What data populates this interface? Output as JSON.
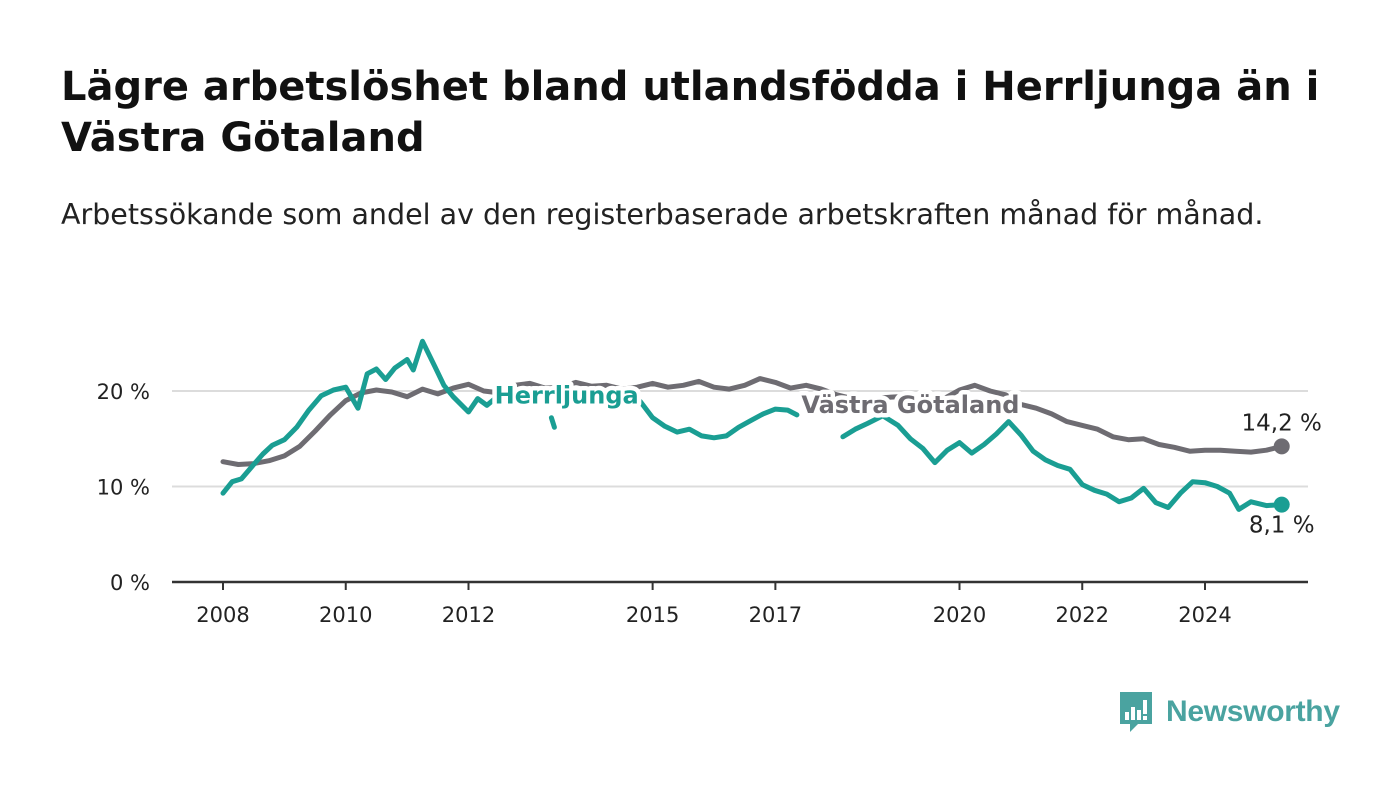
{
  "title": "Lägre arbetslöshet bland utlandsfödda i Herrljunga än i Västra Götaland",
  "subtitle": "Arbetssökande som andel av den registerbaserade arbetskraften månad för månad.",
  "brand": {
    "name": "Newsworthy",
    "color": "#4aa3a0"
  },
  "chart_data": {
    "type": "line",
    "title": "",
    "xlabel": "",
    "ylabel": "",
    "ylim": [
      0,
      25
    ],
    "grid": true,
    "y_ticks": [
      {
        "value": 0,
        "label": "0 %"
      },
      {
        "value": 10,
        "label": "10 %"
      },
      {
        "value": 20,
        "label": "20 %"
      }
    ],
    "x_ticks": [
      {
        "value": 2008,
        "label": "2008"
      },
      {
        "value": 2010,
        "label": "2010"
      },
      {
        "value": 2012,
        "label": "2012"
      },
      {
        "value": 2015,
        "label": "2015"
      },
      {
        "value": 2017,
        "label": "2017"
      },
      {
        "value": 2020,
        "label": "2020"
      },
      {
        "value": 2022,
        "label": "2022"
      },
      {
        "value": 2024,
        "label": "2024"
      }
    ],
    "xlim": [
      2008,
      2026.5
    ],
    "series": [
      {
        "name": "Västra Götaland",
        "color": "#6e6c72",
        "end_label": "14,2 %",
        "points": [
          [
            2008.0,
            12.6
          ],
          [
            2008.25,
            12.3
          ],
          [
            2008.5,
            12.4
          ],
          [
            2008.75,
            12.7
          ],
          [
            2009.0,
            13.2
          ],
          [
            2009.25,
            14.2
          ],
          [
            2009.5,
            15.8
          ],
          [
            2009.75,
            17.5
          ],
          [
            2010.0,
            19.0
          ],
          [
            2010.25,
            19.8
          ],
          [
            2010.5,
            20.1
          ],
          [
            2010.75,
            19.9
          ],
          [
            2011.0,
            19.4
          ],
          [
            2011.25,
            20.2
          ],
          [
            2011.5,
            19.7
          ],
          [
            2011.75,
            20.3
          ],
          [
            2012.0,
            20.7
          ],
          [
            2012.25,
            20.0
          ],
          [
            2012.5,
            19.8
          ],
          [
            2012.75,
            20.6
          ],
          [
            2013.0,
            20.8
          ],
          [
            2013.25,
            20.3
          ],
          [
            2013.5,
            20.4
          ],
          [
            2013.75,
            20.9
          ],
          [
            2014.0,
            20.5
          ],
          [
            2014.25,
            20.6
          ],
          [
            2014.5,
            20.2
          ],
          [
            2014.75,
            20.4
          ],
          [
            2015.0,
            20.8
          ],
          [
            2015.25,
            20.4
          ],
          [
            2015.5,
            20.6
          ],
          [
            2015.75,
            21.0
          ],
          [
            2016.0,
            20.4
          ],
          [
            2016.25,
            20.2
          ],
          [
            2016.5,
            20.6
          ],
          [
            2016.75,
            21.3
          ],
          [
            2017.0,
            20.9
          ],
          [
            2017.25,
            20.3
          ],
          [
            2017.5,
            20.6
          ],
          [
            2017.75,
            20.2
          ],
          [
            2018.0,
            19.6
          ],
          [
            2018.25,
            19.2
          ],
          [
            2018.5,
            18.8
          ],
          [
            2018.75,
            19.3
          ],
          [
            2019.0,
            19.4
          ],
          [
            2019.25,
            18.8
          ],
          [
            2019.5,
            18.7
          ],
          [
            2019.75,
            19.2
          ],
          [
            2020.0,
            20.1
          ],
          [
            2020.25,
            20.6
          ],
          [
            2020.5,
            20.0
          ],
          [
            2020.75,
            19.6
          ],
          [
            2021.0,
            18.6
          ],
          [
            2021.25,
            18.2
          ],
          [
            2021.5,
            17.6
          ],
          [
            2021.75,
            16.8
          ],
          [
            2022.0,
            16.4
          ],
          [
            2022.25,
            16.0
          ],
          [
            2022.5,
            15.2
          ],
          [
            2022.75,
            14.9
          ],
          [
            2023.0,
            15.0
          ],
          [
            2023.25,
            14.4
          ],
          [
            2023.5,
            14.1
          ],
          [
            2023.75,
            13.7
          ],
          [
            2024.0,
            13.8
          ],
          [
            2024.25,
            13.8
          ],
          [
            2024.5,
            13.7
          ],
          [
            2024.75,
            13.6
          ],
          [
            2025.0,
            13.8
          ],
          [
            2025.25,
            14.2
          ]
        ]
      },
      {
        "name": "Herrljunga",
        "color": "#1a9e93",
        "end_label": "8,1 %",
        "points": [
          [
            2008.0,
            9.3
          ],
          [
            2008.15,
            10.5
          ],
          [
            2008.3,
            10.8
          ],
          [
            2008.5,
            12.3
          ],
          [
            2008.65,
            13.4
          ],
          [
            2008.8,
            14.3
          ],
          [
            2009.0,
            14.9
          ],
          [
            2009.2,
            16.2
          ],
          [
            2009.4,
            18.0
          ],
          [
            2009.6,
            19.5
          ],
          [
            2009.8,
            20.1
          ],
          [
            2010.0,
            20.4
          ],
          [
            2010.2,
            18.2
          ],
          [
            2010.35,
            21.8
          ],
          [
            2010.5,
            22.3
          ],
          [
            2010.65,
            21.2
          ],
          [
            2010.8,
            22.4
          ],
          [
            2011.0,
            23.3
          ],
          [
            2011.1,
            22.2
          ],
          [
            2011.25,
            25.2
          ],
          [
            2011.45,
            22.6
          ],
          [
            2011.6,
            20.6
          ],
          [
            2011.75,
            19.4
          ],
          [
            2012.0,
            17.8
          ],
          [
            2012.15,
            19.2
          ],
          [
            2012.3,
            18.5
          ],
          [
            2012.45,
            19.3
          ],
          [
            2012.6,
            19.8
          ]
        ],
        "points_b": [
          [
            2014.8,
            18.9
          ],
          [
            2015.0,
            17.2
          ],
          [
            2015.2,
            16.3
          ],
          [
            2015.4,
            15.7
          ],
          [
            2015.6,
            16.0
          ],
          [
            2015.8,
            15.3
          ],
          [
            2016.0,
            15.1
          ],
          [
            2016.2,
            15.3
          ],
          [
            2016.4,
            16.2
          ],
          [
            2016.6,
            16.9
          ],
          [
            2016.8,
            17.6
          ],
          [
            2017.0,
            18.1
          ],
          [
            2017.2,
            18.0
          ],
          [
            2017.35,
            17.5
          ]
        ],
        "points_c": [
          [
            2018.1,
            15.2
          ],
          [
            2018.3,
            16.0
          ],
          [
            2018.5,
            16.6
          ],
          [
            2018.75,
            17.4
          ],
          [
            2019.0,
            16.4
          ],
          [
            2019.2,
            15.0
          ],
          [
            2019.4,
            14.0
          ],
          [
            2019.6,
            12.5
          ],
          [
            2019.8,
            13.8
          ],
          [
            2020.0,
            14.6
          ],
          [
            2020.2,
            13.5
          ],
          [
            2020.4,
            14.4
          ],
          [
            2020.6,
            15.5
          ],
          [
            2020.8,
            16.8
          ],
          [
            2021.0,
            15.4
          ],
          [
            2021.2,
            13.7
          ],
          [
            2021.4,
            12.8
          ],
          [
            2021.6,
            12.2
          ],
          [
            2021.8,
            11.8
          ],
          [
            2022.0,
            10.2
          ],
          [
            2022.2,
            9.6
          ],
          [
            2022.4,
            9.2
          ],
          [
            2022.6,
            8.4
          ],
          [
            2022.8,
            8.8
          ],
          [
            2023.0,
            9.8
          ],
          [
            2023.2,
            8.3
          ],
          [
            2023.4,
            7.8
          ],
          [
            2023.6,
            9.3
          ],
          [
            2023.8,
            10.5
          ],
          [
            2024.0,
            10.4
          ],
          [
            2024.2,
            10.0
          ],
          [
            2024.4,
            9.3
          ],
          [
            2024.55,
            7.6
          ],
          [
            2024.75,
            8.4
          ],
          [
            2025.0,
            8.0
          ],
          [
            2025.25,
            8.1
          ]
        ]
      }
    ],
    "series_labels": [
      {
        "series": "Herrljunga",
        "x": 2013.6,
        "y": 18.7
      },
      {
        "series": "Västra Götaland",
        "x": 2019.2,
        "y": 17.7
      }
    ]
  }
}
